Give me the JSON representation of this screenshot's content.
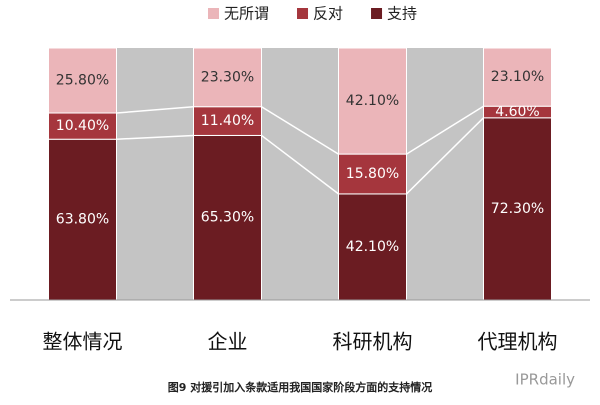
{
  "chart_data": {
    "type": "stacked-bar-100",
    "categories": [
      "整体情况",
      "企业",
      "科研机构",
      "代理机构"
    ],
    "series": [
      {
        "name": "支持",
        "color": "#6b1c22",
        "values": [
          63.8,
          65.3,
          42.1,
          72.3
        ],
        "value_labels": [
          "63.80%",
          "65.30%",
          "42.10%",
          "72.30%"
        ]
      },
      {
        "name": "反对",
        "color": "#a5363d",
        "values": [
          10.4,
          11.4,
          15.8,
          4.6
        ],
        "value_labels": [
          "10.40%",
          "11.40%",
          "15.80%",
          "4.60%"
        ]
      },
      {
        "name": "无所谓",
        "color": "#ebb5b9",
        "values": [
          25.8,
          23.3,
          42.1,
          23.1
        ],
        "value_labels": [
          "25.80%",
          "23.30%",
          "42.10%",
          "23.10%"
        ]
      }
    ],
    "ylim": [
      0,
      100
    ],
    "caption": "图9 对援引加入条款适用我国国家阶段方面的支持情况",
    "watermark": "IPRdaily"
  }
}
